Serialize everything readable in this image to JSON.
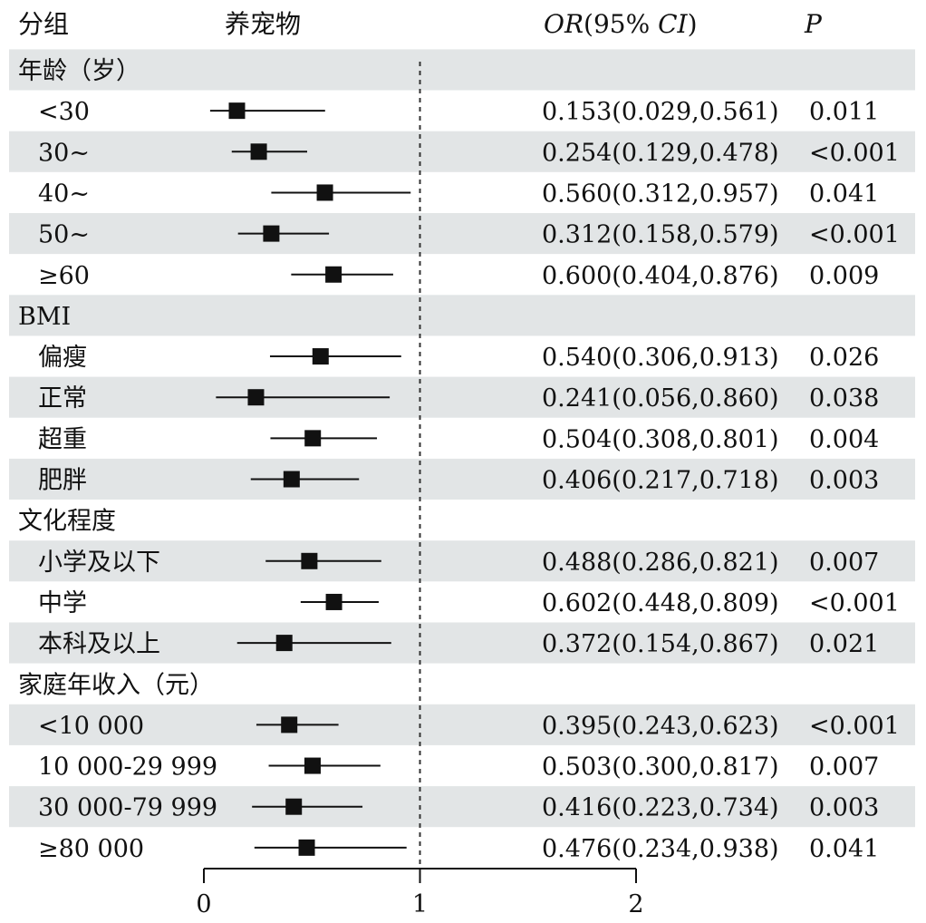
{
  "headers": {
    "group": "分组",
    "pet": "养宠物",
    "or_italic": "OR",
    "or_rest": "(95% ",
    "ci_italic": "CI",
    "close_paren": ")",
    "p": "P"
  },
  "colors": {
    "band": "#e2e5e6",
    "ink": "#111111",
    "background": "#ffffff"
  },
  "chart_data": {
    "type": "forest",
    "reference_line": 1,
    "xlim": [
      0,
      2
    ],
    "x_ticks": [
      "0",
      "1",
      "2"
    ],
    "grid": false,
    "rows": [
      {
        "kind": "section",
        "label": "年龄（岁）"
      },
      {
        "kind": "item",
        "label": "<30",
        "or": 0.153,
        "lo": 0.029,
        "hi": 0.561,
        "or_text": "0.153(0.029,0.561)",
        "p": "0.011"
      },
      {
        "kind": "item",
        "label": "30~",
        "or": 0.254,
        "lo": 0.129,
        "hi": 0.478,
        "or_text": "0.254(0.129,0.478)",
        "p": "<0.001"
      },
      {
        "kind": "item",
        "label": "40~",
        "or": 0.56,
        "lo": 0.312,
        "hi": 0.957,
        "or_text": "0.560(0.312,0.957)",
        "p": "0.041"
      },
      {
        "kind": "item",
        "label": "50~",
        "or": 0.312,
        "lo": 0.158,
        "hi": 0.579,
        "or_text": "0.312(0.158,0.579)",
        "p": "<0.001"
      },
      {
        "kind": "item",
        "label": "≥60",
        "or": 0.6,
        "lo": 0.404,
        "hi": 0.876,
        "or_text": "0.600(0.404,0.876)",
        "p": "0.009"
      },
      {
        "kind": "section",
        "label": "BMI"
      },
      {
        "kind": "item",
        "label": "偏瘦",
        "or": 0.54,
        "lo": 0.306,
        "hi": 0.913,
        "or_text": "0.540(0.306,0.913)",
        "p": "0.026"
      },
      {
        "kind": "item",
        "label": "正常",
        "or": 0.241,
        "lo": 0.056,
        "hi": 0.86,
        "or_text": "0.241(0.056,0.860)",
        "p": "0.038"
      },
      {
        "kind": "item",
        "label": "超重",
        "or": 0.504,
        "lo": 0.308,
        "hi": 0.801,
        "or_text": "0.504(0.308,0.801)",
        "p": "0.004"
      },
      {
        "kind": "item",
        "label": "肥胖",
        "or": 0.406,
        "lo": 0.217,
        "hi": 0.718,
        "or_text": "0.406(0.217,0.718)",
        "p": "0.003"
      },
      {
        "kind": "section",
        "label": "文化程度"
      },
      {
        "kind": "item",
        "label": "小学及以下",
        "or": 0.488,
        "lo": 0.286,
        "hi": 0.821,
        "or_text": "0.488(0.286,0.821)",
        "p": "0.007"
      },
      {
        "kind": "item",
        "label": "中学",
        "or": 0.602,
        "lo": 0.448,
        "hi": 0.809,
        "or_text": "0.602(0.448,0.809)",
        "p": "<0.001"
      },
      {
        "kind": "item",
        "label": "本科及以上",
        "or": 0.372,
        "lo": 0.154,
        "hi": 0.867,
        "or_text": "0.372(0.154,0.867)",
        "p": "0.021"
      },
      {
        "kind": "section",
        "label": "家庭年收入（元）"
      },
      {
        "kind": "item",
        "label": "<10 000",
        "or": 0.395,
        "lo": 0.243,
        "hi": 0.623,
        "or_text": "0.395(0.243,0.623)",
        "p": "<0.001"
      },
      {
        "kind": "item",
        "label": "10 000-29 999",
        "or": 0.503,
        "lo": 0.3,
        "hi": 0.817,
        "or_text": "0.503(0.300,0.817)",
        "p": "0.007"
      },
      {
        "kind": "item",
        "label": "30 000-79 999",
        "or": 0.416,
        "lo": 0.223,
        "hi": 0.734,
        "or_text": "0.416(0.223,0.734)",
        "p": "0.003"
      },
      {
        "kind": "item",
        "label": "≥80 000",
        "or": 0.476,
        "lo": 0.234,
        "hi": 0.938,
        "or_text": "0.476(0.234,0.938)",
        "p": "0.041"
      }
    ]
  }
}
